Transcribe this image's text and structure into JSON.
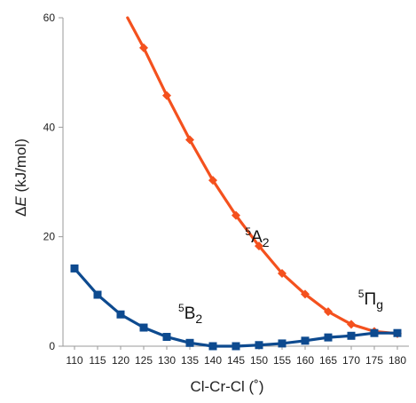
{
  "chart_data": {
    "type": "line",
    "title": "",
    "xlabel": "Cl-Cr-Cl (˚)",
    "ylabel_delta": "Δ",
    "ylabel_var": "E",
    "ylabel_unit": " (kJ/mol)",
    "xlim": [
      107.5,
      182.5
    ],
    "ylim": [
      0,
      60
    ],
    "xticks": [
      110,
      115,
      120,
      125,
      130,
      135,
      140,
      145,
      150,
      155,
      160,
      165,
      170,
      175,
      180
    ],
    "yticks": [
      0,
      20,
      40,
      60
    ],
    "grid": false,
    "legend": "none",
    "series": [
      {
        "color": "#f4511e",
        "marker": "diamond",
        "x": [
          125,
          130,
          135,
          140,
          145,
          150,
          155,
          160,
          165,
          170,
          175,
          180
        ],
        "y": [
          54.5,
          45.8,
          37.7,
          30.3,
          23.9,
          18.3,
          13.3,
          9.5,
          6.3,
          4.0,
          2.7,
          2.3
        ],
        "line_from": [
          121.5,
          60
        ]
      },
      {
        "color": "#0d4a8f",
        "marker": "square",
        "x": [
          110,
          115,
          120,
          125,
          130,
          135,
          140,
          145,
          150,
          155,
          160,
          165,
          170,
          175,
          180
        ],
        "y": [
          14.2,
          9.4,
          5.8,
          3.4,
          1.7,
          0.6,
          0.0,
          0.0,
          0.2,
          0.5,
          1.0,
          1.6,
          1.9,
          2.4,
          2.4
        ]
      }
    ],
    "annotations": [
      {
        "sup": "5",
        "main": "A",
        "sub": "2",
        "x": 147,
        "y": 19
      },
      {
        "sup": "5",
        "main": "B",
        "sub": "2",
        "x": 132.5,
        "y": 5
      },
      {
        "sup": "5",
        "main": "Π",
        "sub": "g",
        "x": 171.5,
        "y": 7.6
      }
    ]
  }
}
